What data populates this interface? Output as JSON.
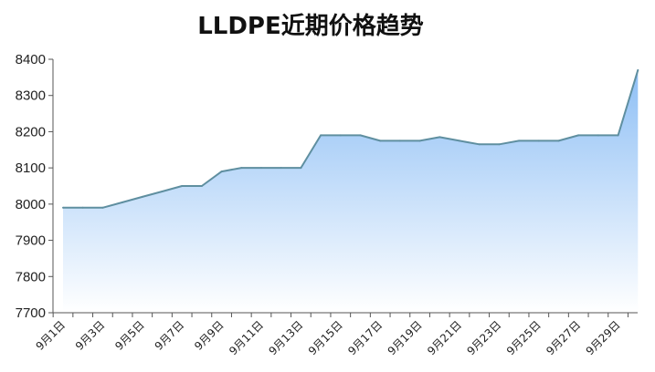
{
  "chart_data": {
    "type": "area",
    "title": "LLDPE近期价格趋势",
    "xlabel": "",
    "ylabel": "",
    "ylim": [
      7700,
      8400
    ],
    "yticks": [
      7700,
      7800,
      7900,
      8000,
      8100,
      8200,
      8300,
      8400
    ],
    "x_tick_labels": [
      "9月1日",
      "9月3日",
      "9月5日",
      "9月7日",
      "9月9日",
      "9月11日",
      "9月13日",
      "9月15日",
      "9月17日",
      "9月19日",
      "9月21日",
      "9月23日",
      "9月25日",
      "9月27日",
      "9月29日"
    ],
    "x": [
      "9月1日",
      "9月2日",
      "9月3日",
      "9月4日",
      "9月5日",
      "9月6日",
      "9月7日",
      "9月8日",
      "9月9日",
      "9月10日",
      "9月11日",
      "9月12日",
      "9月13日",
      "9月14日",
      "9月15日",
      "9月16日",
      "9月17日",
      "9月18日",
      "9月19日",
      "9月20日",
      "9月21日",
      "9月22日",
      "9月23日",
      "9月24日",
      "9月25日",
      "9月26日",
      "9月27日",
      "9月28日",
      "9月29日",
      "9月30日"
    ],
    "series": [
      {
        "values": [
          7990,
          7990,
          7990,
          8005,
          8020,
          8035,
          8050,
          8050,
          8090,
          8100,
          8100,
          8100,
          8100,
          8190,
          8190,
          8190,
          8175,
          8175,
          8175,
          8185,
          8175,
          8165,
          8165,
          8175,
          8175,
          8175,
          8190,
          8190,
          8190,
          8370
        ]
      }
    ],
    "grid": false,
    "legend": "none",
    "colors": {
      "line": "#5f8fa0",
      "fill_top": "#8ebff5",
      "fill_bottom": "#ffffff",
      "axis": "#555555"
    }
  }
}
